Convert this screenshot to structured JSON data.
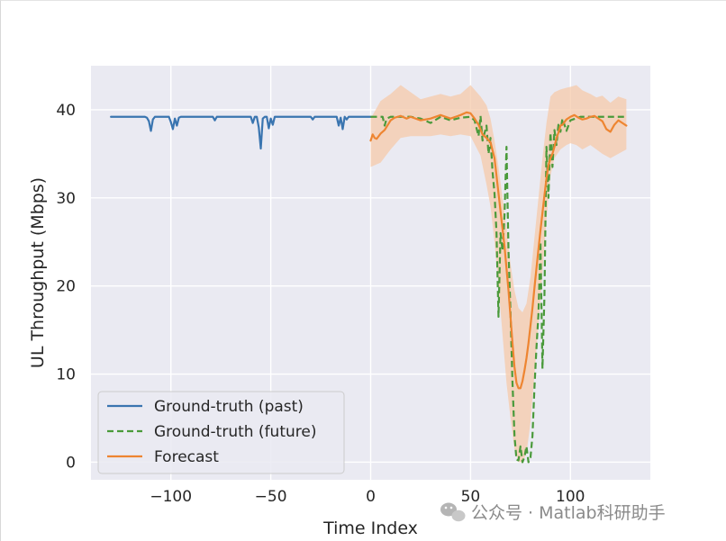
{
  "chart_data": {
    "type": "line",
    "title": "",
    "xlabel": "Time Index",
    "ylabel": "UL Throughput (Mbps)",
    "xlim": [
      -140,
      140
    ],
    "ylim": [
      -2,
      45
    ],
    "x_ticks": [
      -100,
      -50,
      0,
      50,
      100
    ],
    "x_tick_labels": [
      "−100",
      "−50",
      "0",
      "50",
      "100"
    ],
    "y_ticks": [
      0,
      10,
      20,
      30,
      40
    ],
    "y_tick_labels": [
      "0",
      "10",
      "20",
      "30",
      "40"
    ],
    "grid": true,
    "legend_position": "lower-left",
    "series": [
      {
        "name": "Ground-truth (past)",
        "color": "#3a75b0",
        "style": "solid",
        "x": [
          -130,
          -113,
          -112,
          -111,
          -110,
          -109,
          -108,
          -107,
          -101,
          -100,
          -99,
          -98,
          -97,
          -96,
          -95,
          -90,
          -79,
          -78,
          -77,
          -60,
          -59,
          -58,
          -57,
          -56,
          -55,
          -54,
          -53,
          -52,
          -51,
          -50,
          -49,
          -48,
          -47,
          -46,
          -45,
          -30,
          -29,
          -28,
          -27,
          -17,
          -16,
          -15,
          -14,
          -13,
          -12,
          -11,
          -10,
          -9,
          0
        ],
        "y": [
          39.2,
          39.2,
          39.1,
          38.7,
          37.6,
          38.9,
          39.2,
          39.2,
          39.2,
          38.6,
          37.8,
          39.0,
          38.2,
          39.1,
          39.2,
          39.2,
          39.2,
          38.8,
          39.2,
          39.2,
          38.5,
          39.2,
          39.2,
          38.0,
          35.6,
          39.0,
          39.2,
          39.2,
          37.9,
          39.0,
          38.3,
          39.2,
          39.2,
          39.2,
          39.2,
          39.2,
          38.9,
          39.2,
          39.2,
          39.2,
          38.2,
          39.1,
          37.8,
          39.2,
          38.9,
          39.2,
          39.2,
          39.2,
          39.2
        ]
      },
      {
        "name": "Ground-truth (future)",
        "color": "#4a9a3b",
        "style": "dashed",
        "x": [
          0,
          6,
          7,
          8,
          10,
          12,
          14,
          20,
          25,
          30,
          35,
          40,
          45,
          50,
          52,
          54,
          55,
          56,
          58,
          59,
          60,
          61,
          62,
          63,
          64,
          65,
          66,
          67,
          68,
          69,
          70,
          71,
          72,
          73,
          74,
          75,
          76,
          77,
          78,
          79,
          80,
          81,
          82,
          83,
          84,
          85,
          86,
          87,
          88,
          89,
          90,
          91,
          92,
          93,
          94,
          95,
          96,
          98,
          100,
          105,
          110,
          115,
          120,
          125,
          128
        ],
        "y": [
          39.2,
          39.2,
          38.2,
          39.0,
          39.2,
          39.2,
          39.2,
          39.2,
          39.0,
          38.5,
          39.2,
          38.8,
          39.1,
          39.2,
          38.8,
          37.0,
          39.3,
          36.5,
          38.2,
          35.0,
          36.8,
          33.0,
          30.5,
          26.0,
          16.5,
          26.0,
          24.0,
          28.0,
          35.8,
          24.0,
          17.0,
          9.0,
          3.0,
          0.3,
          0.2,
          1.8,
          0.0,
          0.6,
          1.8,
          0.0,
          0.5,
          3.0,
          8.5,
          13.0,
          16.8,
          25.0,
          10.6,
          19.0,
          35.8,
          30.0,
          37.4,
          33.5,
          37.7,
          36.0,
          38.3,
          37.5,
          39.0,
          37.6,
          38.8,
          39.2,
          39.2,
          39.2,
          39.2,
          39.2,
          39.2
        ]
      },
      {
        "name": "Forecast",
        "color": "#ee8531",
        "style": "solid",
        "x": [
          0,
          1,
          2,
          3,
          5,
          7,
          10,
          12,
          15,
          18,
          20,
          25,
          30,
          35,
          40,
          45,
          48,
          50,
          52,
          54,
          56,
          58,
          60,
          62,
          63,
          64,
          65,
          66,
          67,
          68,
          69,
          70,
          71,
          72,
          73,
          74,
          75,
          76,
          77,
          78,
          79,
          80,
          81,
          82,
          83,
          84,
          85,
          86,
          87,
          88,
          89,
          90,
          91,
          92,
          93,
          94,
          95,
          96,
          98,
          100,
          102,
          104,
          106,
          108,
          110,
          112,
          114,
          116,
          118,
          120,
          122,
          124,
          126,
          128
        ],
        "y": [
          36.5,
          37.2,
          36.8,
          36.7,
          37.3,
          37.7,
          38.8,
          39.1,
          39.3,
          39.0,
          39.2,
          38.8,
          39.0,
          39.4,
          39.0,
          39.4,
          39.7,
          39.6,
          39.0,
          38.3,
          37.2,
          36.8,
          36.3,
          34.5,
          32.5,
          30.5,
          28.5,
          26.5,
          24.5,
          22.0,
          19.5,
          16.5,
          13.5,
          10.8,
          9.0,
          8.4,
          8.4,
          9.2,
          10.4,
          11.8,
          13.5,
          15.5,
          17.5,
          19.8,
          22.0,
          24.2,
          26.3,
          28.3,
          30.3,
          32.2,
          33.7,
          34.5,
          35.0,
          35.8,
          36.8,
          37.4,
          38.2,
          38.3,
          38.9,
          39.2,
          39.4,
          39.1,
          38.9,
          39.0,
          39.2,
          39.3,
          39.0,
          38.7,
          37.8,
          37.5,
          38.3,
          38.8,
          38.5,
          38.2
        ]
      }
    ],
    "confidence_band": {
      "series": "Forecast",
      "color": "#f5c9a9",
      "x": [
        0,
        5,
        10,
        15,
        20,
        25,
        30,
        35,
        40,
        45,
        50,
        55,
        58,
        60,
        62,
        64,
        66,
        68,
        70,
        72,
        74,
        76,
        78,
        80,
        82,
        84,
        86,
        88,
        90,
        92,
        95,
        98,
        100,
        103,
        106,
        110,
        113,
        116,
        120,
        124,
        128
      ],
      "lower": [
        33.5,
        34.0,
        35.5,
        36.8,
        37.0,
        37.0,
        37.0,
        37.2,
        37.0,
        37.2,
        37.0,
        34.8,
        31.5,
        29.0,
        25.0,
        20.0,
        14.5,
        9.0,
        5.0,
        1.5,
        0.0,
        0.0,
        1.0,
        4.5,
        10.0,
        15.5,
        21.5,
        27.5,
        32.5,
        34.5,
        35.5,
        36.0,
        36.2,
        36.0,
        35.5,
        36.0,
        35.5,
        35.0,
        34.5,
        35.0,
        35.5
      ],
      "upper": [
        39.0,
        41.0,
        41.8,
        42.8,
        42.0,
        41.2,
        41.5,
        41.8,
        41.5,
        41.8,
        42.8,
        41.5,
        40.5,
        39.0,
        36.5,
        33.5,
        30.0,
        26.5,
        22.5,
        19.5,
        17.5,
        17.0,
        18.0,
        21.0,
        25.5,
        30.0,
        34.5,
        38.5,
        41.5,
        42.0,
        42.3,
        42.5,
        42.6,
        42.8,
        42.2,
        41.8,
        41.4,
        41.6,
        40.8,
        41.5,
        41.2
      ]
    },
    "legend": [
      "Ground-truth (past)",
      "Ground-truth (future)",
      "Forecast"
    ]
  },
  "watermark": {
    "text": "公众号 · Matlab科研助手"
  }
}
